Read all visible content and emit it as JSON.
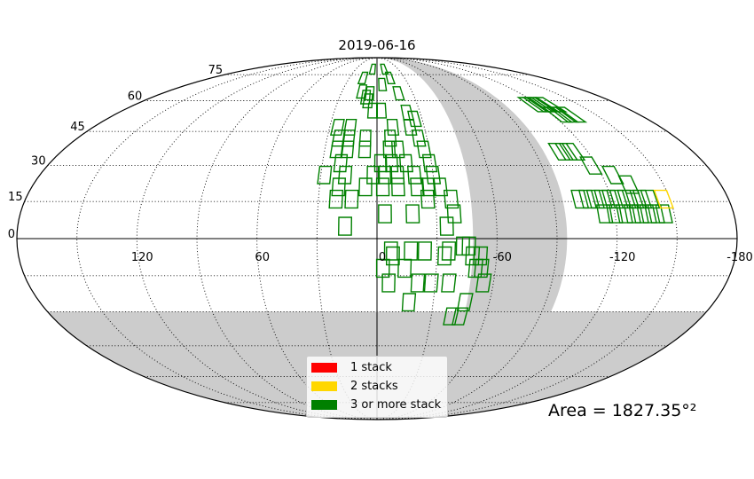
{
  "chart_data": {
    "type": "scatter",
    "title": "2019-06-16",
    "projection": "mollweide",
    "area_label": "Area = 1827.35°²",
    "x_ticks": [
      -120,
      -60,
      0,
      60,
      120,
      -180
    ],
    "x_tick_labels": [
      "-120",
      "-60",
      "0",
      "60",
      "120",
      "-180"
    ],
    "y_ticks": [
      0,
      15,
      30,
      45,
      60,
      75
    ],
    "y_tick_labels": [
      "0",
      "15",
      "30",
      "45",
      "60",
      "75"
    ],
    "grid": true,
    "legend_position": "bottom-center",
    "legend": [
      {
        "label": "1 stack",
        "color": "#ff0000"
      },
      {
        "label": "2 stacks",
        "color": "#ffd700"
      },
      {
        "label": "3 or more stack",
        "color": "#008000"
      }
    ],
    "excluded_region_color": "#cccccc",
    "excluded_regions": [
      {
        "name": "south cap",
        "lat_max": -30
      },
      {
        "name": "galactic band",
        "lon_left": 48,
        "lon_right": 95
      }
    ],
    "series": [
      {
        "name": "3 or more stack",
        "color": "#008000",
        "fields": [
          [
            -10,
            79
          ],
          [
            6,
            79
          ],
          [
            -14,
            73
          ],
          [
            15,
            73
          ],
          [
            -5,
            69
          ],
          [
            -18,
            64
          ],
          [
            6,
            64
          ],
          [
            9,
            62
          ],
          [
            7,
            60
          ],
          [
            13,
            65
          ],
          [
            -3,
            55
          ],
          [
            3,
            55
          ],
          [
            -21,
            54
          ],
          [
            -25,
            51
          ],
          [
            -21,
            47
          ],
          [
            -10,
            47
          ],
          [
            17,
            47
          ],
          [
            25,
            47
          ],
          [
            -25,
            42
          ],
          [
            -8,
            42
          ],
          [
            7,
            42
          ],
          [
            17,
            42
          ],
          [
            23,
            42
          ],
          [
            -27,
            37
          ],
          [
            -12,
            37
          ],
          [
            -7,
            37
          ],
          [
            7,
            37
          ],
          [
            17,
            37
          ],
          [
            23,
            37
          ],
          [
            -29,
            31
          ],
          [
            -16,
            31
          ],
          [
            -8,
            31
          ],
          [
            -2,
            31
          ],
          [
            20,
            31
          ],
          [
            -30,
            26
          ],
          [
            -20,
            26
          ],
          [
            -11,
            26
          ],
          [
            -4,
            26
          ],
          [
            2,
            26
          ],
          [
            17,
            26
          ],
          [
            28,
            26
          ],
          [
            -33,
            21
          ],
          [
            -27,
            21
          ],
          [
            -21,
            21
          ],
          [
            -11,
            21
          ],
          [
            -3,
            21
          ],
          [
            6,
            21
          ],
          [
            20,
            21
          ],
          [
            -38,
            16
          ],
          [
            -26,
            16
          ],
          [
            13,
            16
          ],
          [
            21,
            16
          ],
          [
            -39,
            10
          ],
          [
            -18,
            10
          ],
          [
            -4,
            10
          ],
          [
            -35,
            5
          ],
          [
            16,
            5
          ],
          [
            -46,
            -3
          ],
          [
            -43,
            -3
          ],
          [
            -36,
            -5
          ],
          [
            -24,
            -5
          ],
          [
            -17,
            -5
          ],
          [
            -7,
            -5
          ],
          [
            -52,
            -7
          ],
          [
            -48,
            -7
          ],
          [
            -34,
            -7
          ],
          [
            -8,
            -7
          ],
          [
            -53,
            -12
          ],
          [
            -50,
            -12
          ],
          [
            -14,
            -12
          ],
          [
            -3,
            -12
          ],
          [
            -55,
            -18
          ],
          [
            -37,
            -18
          ],
          [
            -28,
            -18
          ],
          [
            -21,
            -18
          ],
          [
            -6,
            -18
          ],
          [
            -47,
            -26
          ],
          [
            -17,
            -26
          ],
          [
            -46,
            -32
          ],
          [
            -41,
            -32
          ],
          [
            -129,
            58
          ],
          [
            -124,
            58
          ],
          [
            -120,
            58
          ],
          [
            -116,
            58
          ],
          [
            -133,
            53
          ],
          [
            -128,
            53
          ],
          [
            -124,
            53
          ],
          [
            -112,
            36
          ],
          [
            -108,
            36
          ],
          [
            -104,
            36
          ],
          [
            -117,
            30
          ],
          [
            -126,
            26
          ],
          [
            -132,
            22
          ],
          [
            -140,
            16
          ],
          [
            -136,
            16
          ],
          [
            -132,
            16
          ],
          [
            -128,
            16
          ],
          [
            -124,
            16
          ],
          [
            -120,
            16
          ],
          [
            -116,
            16
          ],
          [
            -112,
            16
          ],
          [
            -108,
            16
          ],
          [
            -104,
            16
          ],
          [
            -145,
            10
          ],
          [
            -141,
            10
          ],
          [
            -137,
            10
          ],
          [
            -133,
            10
          ],
          [
            -129,
            10
          ],
          [
            -125,
            10
          ],
          [
            -120,
            10
          ],
          [
            -115,
            10
          ]
        ]
      },
      {
        "name": "2 stacks",
        "color": "#ffd700",
        "fields": [
          [
            -147,
            16
          ]
        ]
      }
    ]
  }
}
